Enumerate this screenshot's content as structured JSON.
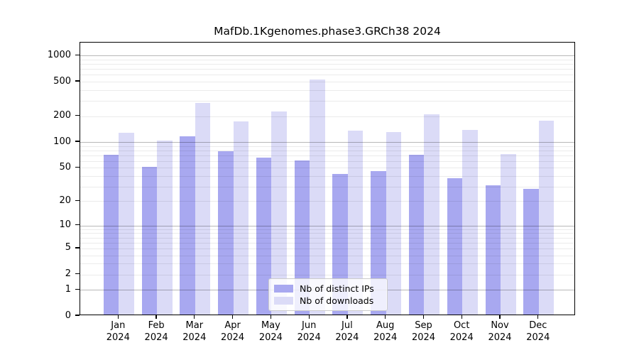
{
  "figure": {
    "title": "MafDb.1Kgenomes.phase3.GRCh38 2024"
  },
  "chart_data": {
    "type": "bar",
    "title": "MafDb.1Kgenomes.phase3.GRCh38 2024",
    "categories": [
      "Jan 2024",
      "Feb 2024",
      "Mar 2024",
      "Apr 2024",
      "May 2024",
      "Jun 2024",
      "Jul 2024",
      "Aug 2024",
      "Sep 2024",
      "Oct 2024",
      "Nov 2024",
      "Dec 2024"
    ],
    "series": [
      {
        "name": "Nb of distinct IPs",
        "color": "#a8a8f0",
        "values": [
          69,
          49,
          113,
          75,
          64,
          59,
          41,
          44,
          68,
          36,
          30,
          27
        ]
      },
      {
        "name": "Nb of downloads",
        "color": "#dbdbf7",
        "values": [
          123,
          100,
          274,
          166,
          217,
          508,
          130,
          125,
          201,
          133,
          70,
          171
        ]
      }
    ],
    "xlabel": "",
    "ylabel": "",
    "yscale": "symlog",
    "yticks": [
      0,
      1,
      2,
      5,
      10,
      20,
      50,
      100,
      200,
      500,
      1000
    ],
    "ylim": [
      0,
      1450
    ],
    "grid": true,
    "minor_grid": true,
    "legend_position": "lower center inside axes",
    "colors": {
      "major_gridline": "#b5b5b5",
      "minor_gridline": "#e9e9e9",
      "axis": "#000000",
      "background": "#ffffff"
    }
  },
  "legend": {
    "items": [
      {
        "label": "Nb of distinct IPs",
        "color": "#a8a8f0"
      },
      {
        "label": "Nb of downloads",
        "color": "#dbdbf7"
      }
    ]
  }
}
